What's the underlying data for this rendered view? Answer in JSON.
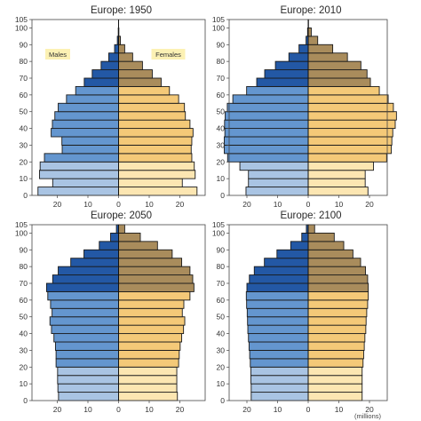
{
  "chart_data": [
    {
      "type": "bar",
      "title": "Europe: 1950",
      "age_ticks": [
        "0",
        "10",
        "20",
        "30",
        "40",
        "50",
        "60",
        "70",
        "80",
        "90",
        "100",
        "105"
      ],
      "x_ticks": [
        "20",
        "10",
        "0",
        "10",
        "20"
      ],
      "xlim": [
        -30,
        30
      ],
      "ylim": [
        0,
        105
      ],
      "legend": {
        "males": "Males",
        "females": "Females"
      },
      "age_groups": [
        "0-4",
        "5-9",
        "10-14",
        "15-19",
        "20-24",
        "25-29",
        "30-34",
        "35-39",
        "40-44",
        "45-49",
        "50-54",
        "55-59",
        "60-64",
        "65-69",
        "70-74",
        "75-79",
        "80-84",
        "85-89",
        "90-94",
        "95-99",
        "100+"
      ],
      "series": [
        {
          "name": "Males",
          "values": [
            26.3,
            21.5,
            25.8,
            25.6,
            24.2,
            18.4,
            18.5,
            22.0,
            21.6,
            20.8,
            19.7,
            17.0,
            14.0,
            11.2,
            8.6,
            5.7,
            3.2,
            1.3,
            0.4,
            0.1,
            0.0
          ]
        },
        {
          "name": "Females",
          "values": [
            25.6,
            20.8,
            25.0,
            24.7,
            23.9,
            23.7,
            23.9,
            24.3,
            23.3,
            21.8,
            21.5,
            19.6,
            16.6,
            13.9,
            11.0,
            7.8,
            4.6,
            2.0,
            0.6,
            0.1,
            0.0
          ]
        }
      ],
      "colors": {
        "male_young": "#a9c4e3",
        "male_adult": "#6496cf",
        "male_old": "#2358a5",
        "female_young": "#fce6b2",
        "female_adult": "#f4c978",
        "female_old": "#a98c5c"
      }
    },
    {
      "type": "bar",
      "title": "Europe: 2010",
      "age_ticks": [
        "0",
        "10",
        "20",
        "30",
        "40",
        "50",
        "60",
        "70",
        "80",
        "90",
        "100",
        "105"
      ],
      "x_ticks": [
        "20",
        "10",
        "0",
        "10",
        "20"
      ],
      "xlim": [
        -30,
        30
      ],
      "ylim": [
        0,
        105
      ],
      "age_groups": [
        "0-4",
        "5-9",
        "10-14",
        "15-19",
        "20-24",
        "25-29",
        "30-34",
        "35-39",
        "40-44",
        "45-49",
        "50-54",
        "55-59",
        "60-64",
        "65-69",
        "70-74",
        "75-79",
        "80-84",
        "85-89",
        "90-94",
        "95-99",
        "100+"
      ],
      "series": [
        {
          "name": "Males",
          "values": [
            20.3,
            19.5,
            19.5,
            22.3,
            26.3,
            27.4,
            27.4,
            27.2,
            27.3,
            27.1,
            26.4,
            24.6,
            20.1,
            16.8,
            14.2,
            10.7,
            6.3,
            3.0,
            0.7,
            0.2,
            0.0
          ]
        },
        {
          "name": "Females",
          "values": [
            19.5,
            18.6,
            18.6,
            21.3,
            25.6,
            27.1,
            27.3,
            27.6,
            28.4,
            28.8,
            27.8,
            26.1,
            23.2,
            20.3,
            19.2,
            17.2,
            12.8,
            8.0,
            3.1,
            1.0,
            0.1
          ]
        }
      ],
      "colors": {
        "male_young": "#a9c4e3",
        "male_adult": "#6496cf",
        "male_old": "#2358a5",
        "female_young": "#fce6b2",
        "female_adult": "#f4c978",
        "female_old": "#a98c5c"
      }
    },
    {
      "type": "bar",
      "title": "Europe: 2050",
      "age_ticks": [
        "0",
        "10",
        "20",
        "30",
        "40",
        "50",
        "60",
        "70",
        "80",
        "90",
        "100",
        "105"
      ],
      "x_ticks": [
        "20",
        "10",
        "0",
        "10",
        "20"
      ],
      "xlim": [
        -30,
        30
      ],
      "ylim": [
        0,
        105
      ],
      "age_groups": [
        "0-4",
        "5-9",
        "10-14",
        "15-19",
        "20-24",
        "25-29",
        "30-34",
        "35-39",
        "40-44",
        "45-49",
        "50-54",
        "55-59",
        "60-64",
        "65-69",
        "70-74",
        "75-79",
        "80-84",
        "85-89",
        "90-94",
        "95-99",
        "100+"
      ],
      "series": [
        {
          "name": "Males",
          "values": [
            19.6,
            19.8,
            19.9,
            19.9,
            20.4,
            20.4,
            20.6,
            21.1,
            21.9,
            22.4,
            21.7,
            22.2,
            23.1,
            23.5,
            21.5,
            19.7,
            15.6,
            11.3,
            6.3,
            2.6,
            0.7
          ]
        },
        {
          "name": "Females",
          "values": [
            19.2,
            19.0,
            19.0,
            19.0,
            19.6,
            19.8,
            20.1,
            20.6,
            21.2,
            21.6,
            20.8,
            21.3,
            23.3,
            24.6,
            24.2,
            23.3,
            20.6,
            17.5,
            12.7,
            7.1,
            2.0
          ]
        }
      ],
      "colors": {
        "male_young": "#a9c4e3",
        "male_adult": "#6496cf",
        "male_old": "#2358a5",
        "female_young": "#fce6b2",
        "female_adult": "#f4c978",
        "female_old": "#a98c5c"
      }
    },
    {
      "type": "bar",
      "title": "Europe: 2100",
      "age_ticks": [
        "0",
        "10",
        "20",
        "30",
        "40",
        "50",
        "60",
        "70",
        "80",
        "90",
        "100",
        "105"
      ],
      "x_ticks": [
        "20",
        "10",
        "0",
        "10",
        "20"
      ],
      "xlim": [
        -30,
        30
      ],
      "ylim": [
        0,
        105
      ],
      "unit_label": "(millions)",
      "age_groups": [
        "0-4",
        "5-9",
        "10-14",
        "15-19",
        "20-24",
        "25-29",
        "30-34",
        "35-39",
        "40-44",
        "45-49",
        "50-54",
        "55-59",
        "60-64",
        "65-69",
        "70-74",
        "75-79",
        "80-84",
        "85-89",
        "90-94",
        "95-99",
        "100+"
      ],
      "series": [
        {
          "name": "Males",
          "values": [
            18.6,
            18.6,
            18.7,
            18.7,
            18.9,
            19.1,
            19.3,
            19.5,
            19.7,
            19.8,
            19.9,
            20.1,
            20.2,
            20.0,
            19.2,
            17.6,
            14.3,
            10.2,
            5.7,
            2.1,
            0.6
          ]
        },
        {
          "name": "Females",
          "values": [
            17.6,
            17.6,
            17.6,
            17.6,
            17.9,
            18.1,
            18.3,
            18.5,
            18.8,
            18.9,
            19.1,
            19.4,
            19.6,
            19.6,
            19.4,
            18.7,
            17.1,
            14.6,
            11.6,
            8.5,
            2.1
          ]
        }
      ],
      "colors": {
        "male_young": "#a9c4e3",
        "male_adult": "#6496cf",
        "male_old": "#2358a5",
        "female_young": "#fce6b2",
        "female_adult": "#f4c978",
        "female_old": "#a98c5c"
      }
    }
  ]
}
